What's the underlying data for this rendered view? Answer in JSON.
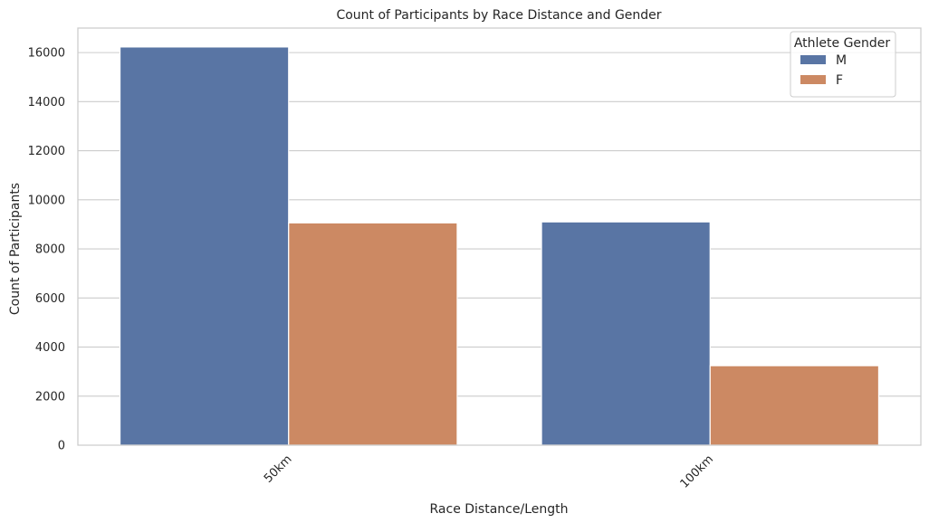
{
  "chart_data": {
    "type": "bar",
    "title": "Count of Participants by Race Distance and Gender",
    "xlabel": "Race Distance/Length",
    "ylabel": "Count of Participants",
    "categories": [
      "50km",
      "100km"
    ],
    "series": [
      {
        "name": "M",
        "values": [
          16230,
          9100
        ],
        "color": "#5975a4"
      },
      {
        "name": "F",
        "values": [
          9060,
          3240
        ],
        "color": "#cc8963"
      }
    ],
    "ylim": [
      0,
      17000
    ],
    "yticks": [
      0,
      2000,
      4000,
      6000,
      8000,
      10000,
      12000,
      14000,
      16000
    ],
    "grid": "horizontal",
    "legend": {
      "title": "Athlete Gender",
      "position": "top-right"
    },
    "xtick_rotation": "45 degrees"
  },
  "colors": {
    "grid": "#cccccc",
    "axis": "#cccccc",
    "text": "#262626",
    "background": "#ffffff"
  }
}
